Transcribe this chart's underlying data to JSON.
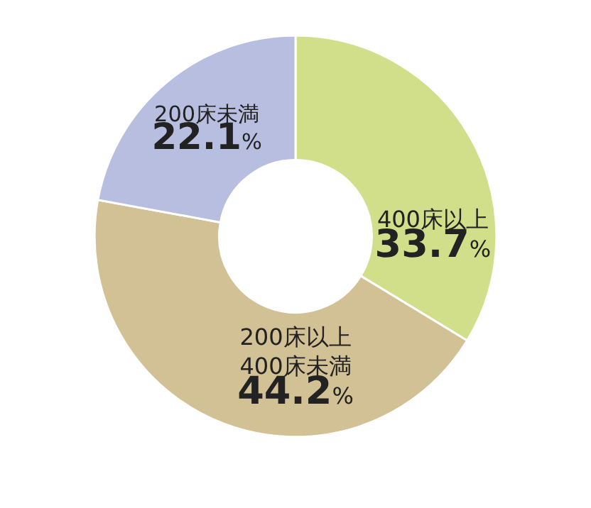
{
  "chart_data": {
    "type": "donut",
    "categories": [
      "400床以上",
      "200床以上\n400床未満",
      "200床未満"
    ],
    "values": [
      33.7,
      44.2,
      22.1
    ],
    "value_labels": [
      "33.7%",
      "44.2%",
      "22.1%"
    ],
    "colors": [
      "#d2df8a",
      "#d3c196",
      "#b8bedf"
    ],
    "legend": false
  }
}
